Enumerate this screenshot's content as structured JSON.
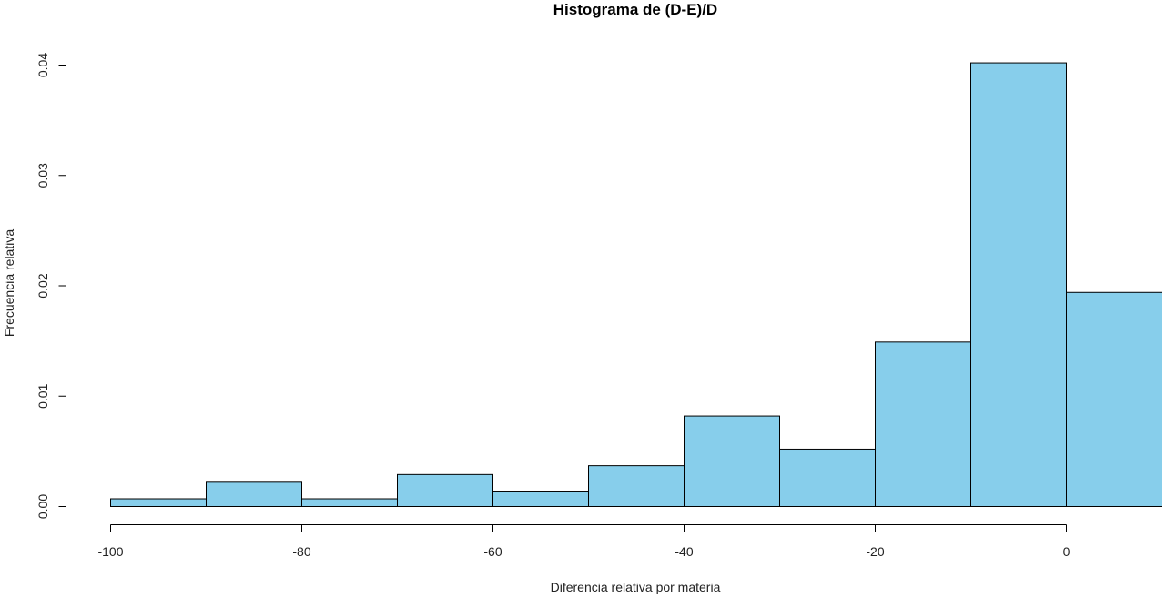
{
  "chart_data": {
    "type": "bar",
    "title": "Histograma de (D-E)/D",
    "xlabel": "Diferencia relativa por materia",
    "ylabel": "Frecuencia relativa",
    "bin_edges": [
      -100,
      -90,
      -80,
      -70,
      -60,
      -50,
      -40,
      -30,
      -20,
      -10,
      0,
      10
    ],
    "values": [
      0.0007,
      0.0022,
      0.0007,
      0.0029,
      0.0014,
      0.0037,
      0.0082,
      0.0052,
      0.0149,
      0.0402,
      0.0194
    ],
    "xlim": [
      -100,
      10
    ],
    "ylim": [
      0,
      0.04
    ],
    "x_ticks": [
      -100,
      -80,
      -60,
      -40,
      -20,
      0
    ],
    "x_tick_labels": [
      "-100",
      "-80",
      "-60",
      "-40",
      "-20",
      "0"
    ],
    "y_ticks": [
      0,
      0.01,
      0.02,
      0.03,
      0.04
    ],
    "y_tick_labels": [
      "0.00",
      "0.01",
      "0.02",
      "0.03",
      "0.04"
    ],
    "bar_color": "#87CEEB",
    "grid": false,
    "legend": "none"
  }
}
